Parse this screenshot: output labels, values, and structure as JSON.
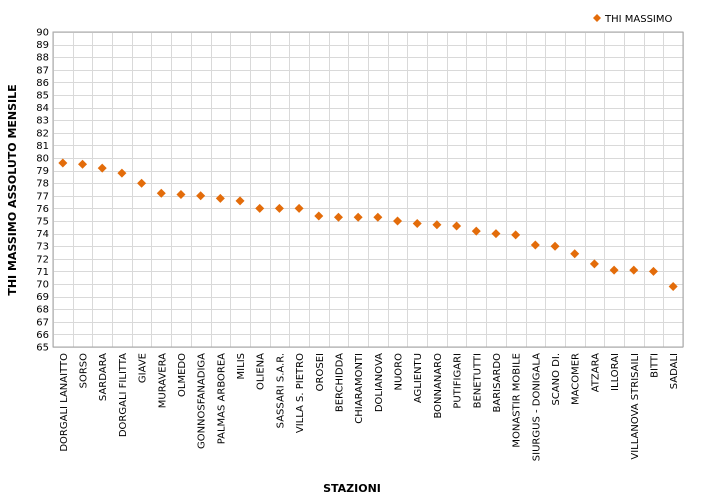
{
  "chart_data": {
    "type": "scatter",
    "title": "",
    "xlabel": "STAZIONI",
    "ylabel": "THI MASSIMO ASSOLUTO MENSILE",
    "ylim": [
      65,
      90
    ],
    "ytick_step": 1,
    "grid": true,
    "legend_position": "top-right",
    "marker": "diamond",
    "series": [
      {
        "name": "THI MASSIMO",
        "color": "#E36C0A",
        "values": [
          79.6,
          79.5,
          79.2,
          78.8,
          78.0,
          77.2,
          77.1,
          77.0,
          76.8,
          76.6,
          76.0,
          76.0,
          76.0,
          75.4,
          75.3,
          75.3,
          75.3,
          75.0,
          74.8,
          74.7,
          74.6,
          74.2,
          74.0,
          73.9,
          73.1,
          73.0,
          72.4,
          71.6,
          71.1,
          71.1,
          71.0,
          69.8
        ]
      }
    ],
    "categories": [
      "DORGALI LANAITTO",
      "SORSO",
      "SARDARA",
      "DORGALI FILITTA",
      "GIAVE",
      "MURAVERA",
      "OLMEDO",
      "GONNOSFANADIGA",
      "PALMAS ARBOREA",
      "MILIS",
      "OLIENA",
      "SASSARI S.A.R.",
      "VILLA S. PIETRO",
      "OROSEI",
      "BERCHIDDA",
      "CHIARAMONTI",
      "DOLIANOVA",
      "NUORO",
      "AGLIENTU",
      "BONNANARO",
      "PUTIFIGARI",
      "BENETUTTI",
      "BARISARDO",
      "MONASTIR MOBILE",
      "SIURGUS - DONIGALA",
      "SCANO DI.",
      "MACOMER",
      "ATZARA",
      "ILLORAI",
      "VILLANOVA STRISAILI",
      "BITTI",
      "SADALI"
    ]
  }
}
